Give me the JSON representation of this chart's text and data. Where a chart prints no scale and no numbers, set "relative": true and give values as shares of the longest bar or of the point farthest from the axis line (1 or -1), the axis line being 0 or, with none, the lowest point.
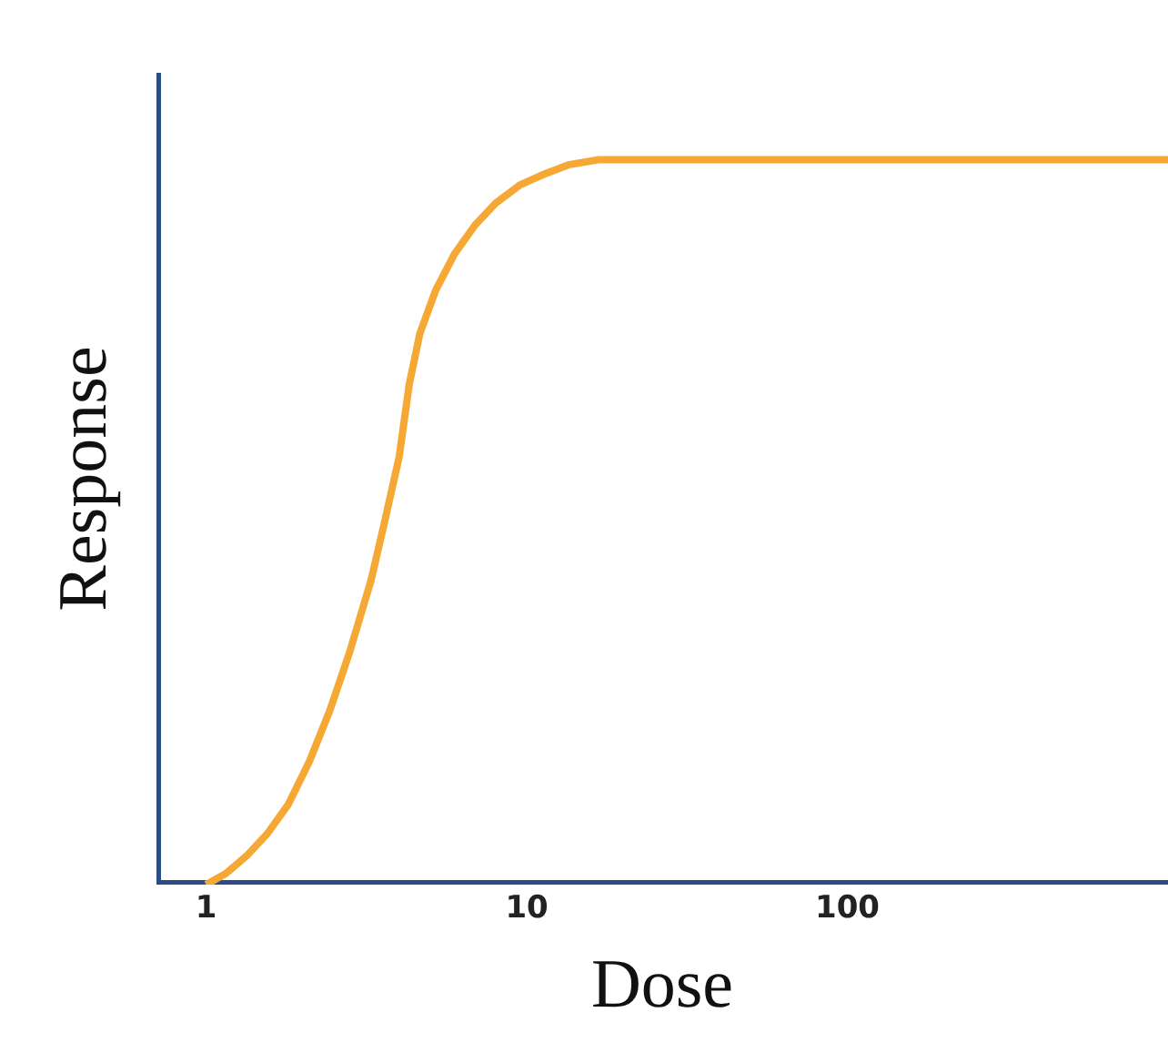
{
  "chart_data": {
    "type": "line",
    "xlabel": "Dose",
    "ylabel": "Response",
    "relative": true,
    "log": "x",
    "xlim": [
      0.7,
      1000
    ],
    "xticks": [
      1,
      10,
      100
    ],
    "grid": false,
    "legend": false,
    "marker": "none",
    "line_style": "solid",
    "x": [
      1,
      1.15,
      1.34,
      1.55,
      1.8,
      2.1,
      2.43,
      2.8,
      3.27,
      3.6,
      4.0,
      4.3,
      4.64,
      5.2,
      5.95,
      6.9,
      8.0,
      9.5,
      11.3,
      13.5,
      16.7,
      1000
    ],
    "series": [
      {
        "color": "#f5a833",
        "values": [
          0,
          0.015,
          0.04,
          0.07,
          0.11,
          0.17,
          0.24,
          0.32,
          0.42,
          0.5,
          0.59,
          0.69,
          0.76,
          0.82,
          0.87,
          0.91,
          0.94,
          0.965,
          0.98,
          0.993,
          1,
          1
        ]
      }
    ]
  }
}
